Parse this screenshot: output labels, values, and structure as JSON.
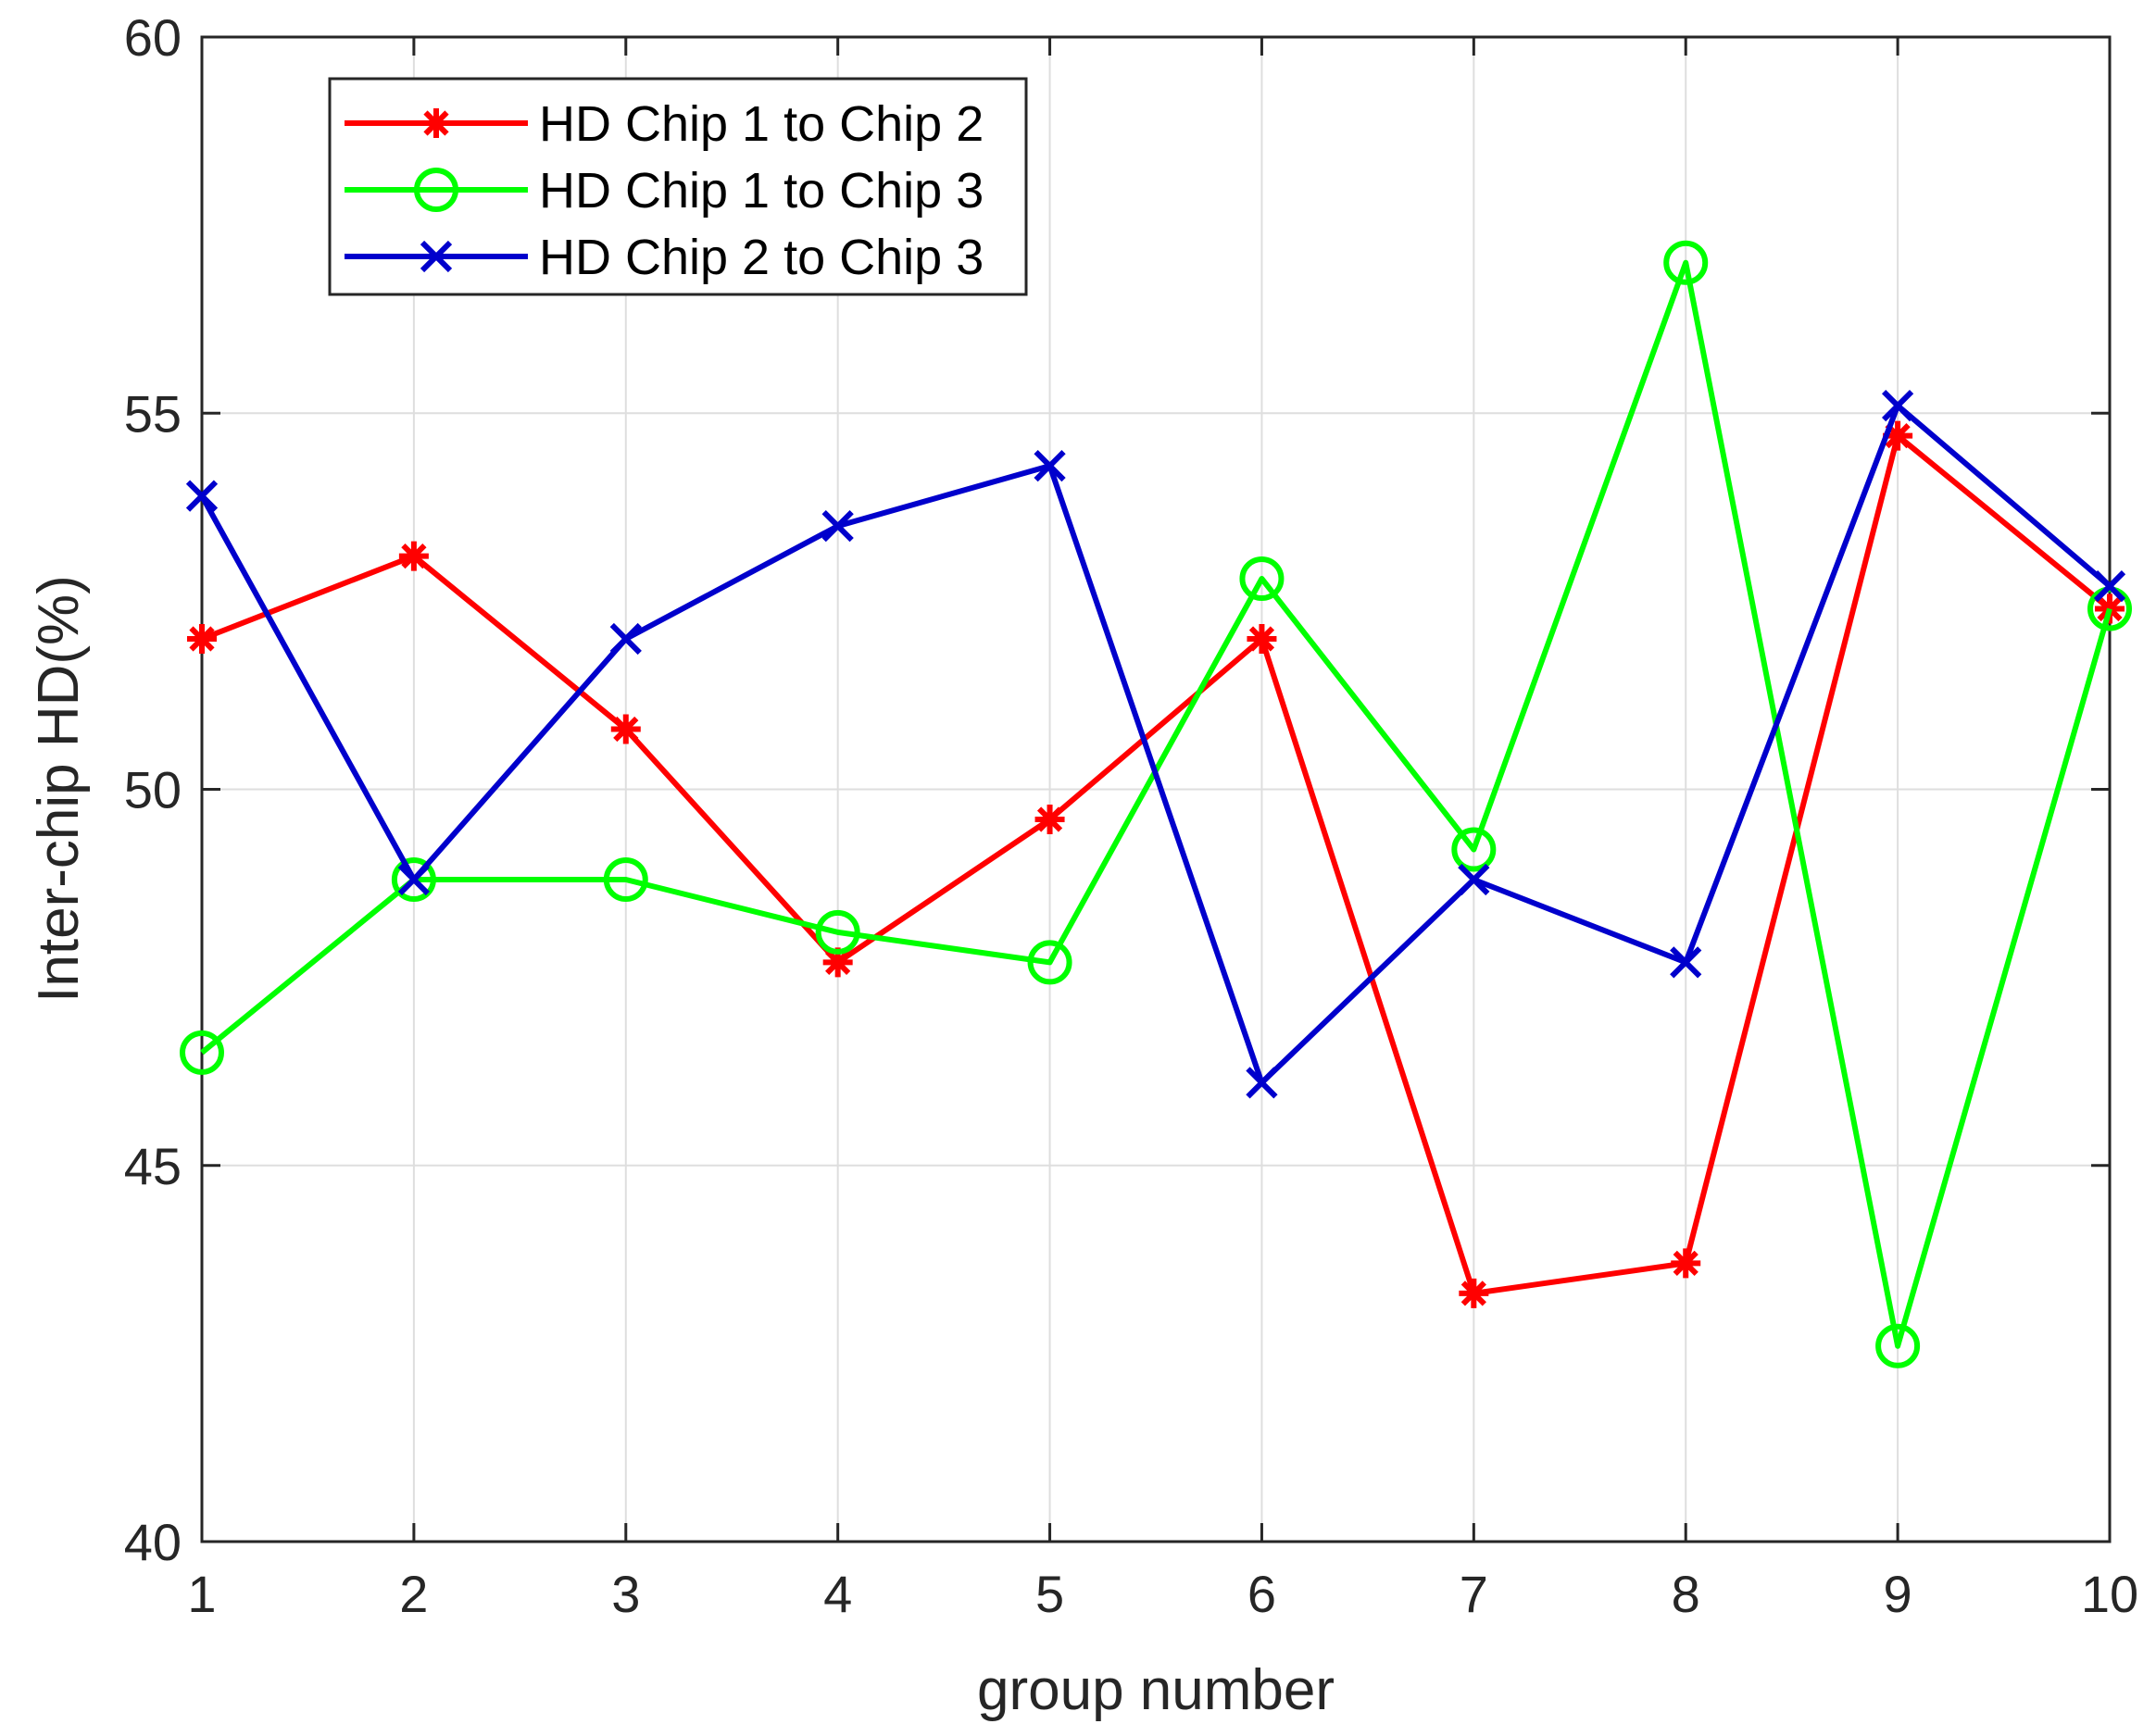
{
  "chart_data": {
    "type": "line",
    "xlabel": "group number",
    "ylabel": "Inter-chip HD(%)",
    "xlim": [
      1,
      10
    ],
    "ylim": [
      40,
      60
    ],
    "x": [
      1,
      2,
      3,
      4,
      5,
      6,
      7,
      8,
      9,
      10
    ],
    "xticks": [
      "1",
      "2",
      "3",
      "4",
      "5",
      "6",
      "7",
      "8",
      "9",
      "10"
    ],
    "yticks": [
      40,
      45,
      50,
      55,
      60
    ],
    "grid": true,
    "legend_position": "top-left",
    "series": [
      {
        "name": "HD Chip 1 to Chip 2",
        "color": "#ff0000",
        "marker": "asterisk",
        "values": [
          52.0,
          53.1,
          50.8,
          47.7,
          49.6,
          52.0,
          43.3,
          43.7,
          54.7,
          52.4
        ]
      },
      {
        "name": "HD Chip 1 to Chip 3",
        "color": "#00ff00",
        "marker": "circle",
        "values": [
          46.5,
          48.8,
          48.8,
          48.1,
          47.7,
          52.8,
          49.2,
          57.0,
          42.6,
          52.4
        ]
      },
      {
        "name": "HD Chip 2 to Chip 3",
        "color": "#0000cc",
        "marker": "x",
        "values": [
          53.9,
          48.8,
          52.0,
          53.5,
          54.3,
          46.1,
          48.8,
          47.7,
          55.1,
          52.7
        ]
      }
    ]
  }
}
